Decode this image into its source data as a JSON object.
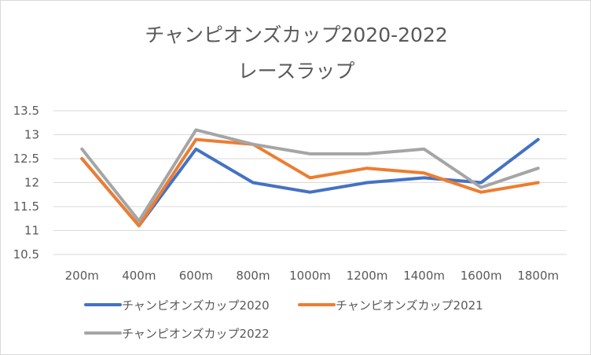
{
  "chart_data": {
    "type": "line",
    "title_line1": "チャンピオンズカップ2020-2022",
    "title_line2": "レースラップ",
    "xlabel": "",
    "ylabel": "",
    "categories": [
      "200m",
      "400m",
      "600m",
      "800m",
      "1000m",
      "1200m",
      "1400m",
      "1600m",
      "1800m"
    ],
    "y_ticks": [
      "13.5",
      "13",
      "12.5",
      "12",
      "11.5",
      "11",
      "10.5"
    ],
    "ylim": [
      10.5,
      13.5
    ],
    "grid": true,
    "legend_position": "bottom",
    "series": [
      {
        "name": "チャンピオンズカップ2020",
        "color": "#4472c4",
        "values": [
          12.5,
          11.1,
          12.7,
          12.0,
          11.8,
          12.0,
          12.1,
          12.0,
          12.9
        ]
      },
      {
        "name": "チャンピオンズカップ2021",
        "color": "#ed7d31",
        "values": [
          12.5,
          11.1,
          12.9,
          12.8,
          12.1,
          12.3,
          12.2,
          11.8,
          12.0
        ]
      },
      {
        "name": "チャンピオンズカップ2022",
        "color": "#a5a5a5",
        "values": [
          12.7,
          11.2,
          13.1,
          12.8,
          12.6,
          12.6,
          12.7,
          11.9,
          12.3
        ]
      }
    ]
  }
}
